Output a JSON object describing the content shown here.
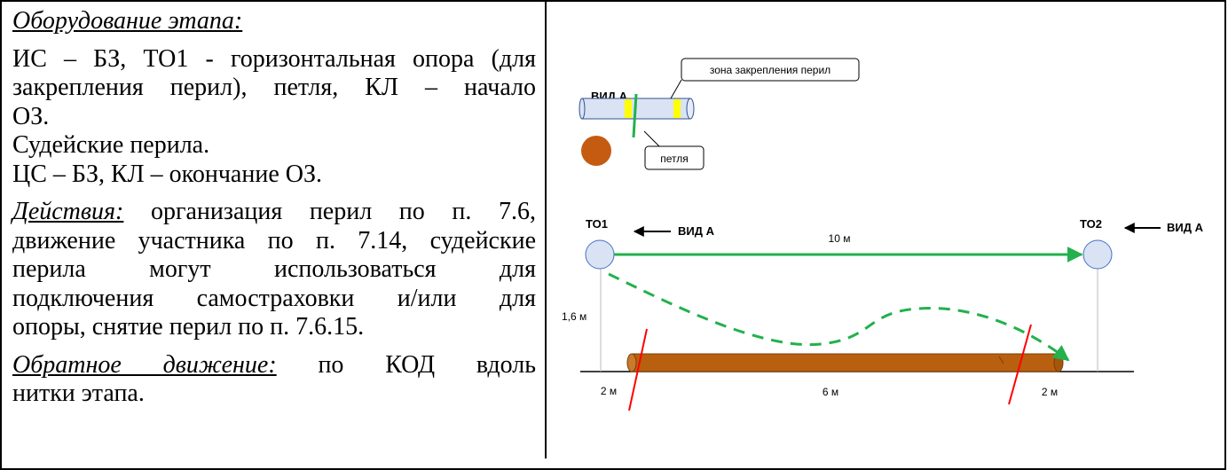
{
  "text": {
    "equipment_header": "Оборудование этапа:",
    "equipment_lines": [
      "ИС – БЗ, ТО1 - горизонтальная опора (для",
      "закрепления перил), петля, КЛ – начало",
      "ОЗ.",
      "Судейские перила.",
      "ЦС – БЗ, КЛ – окончание ОЗ."
    ],
    "actions_header": "Действия:",
    "actions_lines": [
      " организация перил по п. 7.6,",
      "движение участника по п. 7.14, судейские",
      "перила могут использоваться для",
      "подключения самостраховки и/или для",
      "опоры, снятие перил по п. 7.6.15."
    ],
    "return_header": "Обратное движение:",
    "return_lines": [
      " по КОД вдоль",
      "нитки этапа."
    ]
  },
  "diagram": {
    "view_a_title": "ВИД А",
    "callout_rail_zone": "зона закрепления перил",
    "callout_loop": "петля",
    "to1_label": "ТО1",
    "to2_label": "ТО2",
    "view_a_arrow_label_1": "ВИД А",
    "view_a_arrow_label_2": "ВИД А",
    "span_label": "10 м",
    "height_label": "1,6 м",
    "left_gap_label": "2 м",
    "log_length_label": "6 м",
    "right_gap_label": "2 м",
    "colors": {
      "green": "#22b14c",
      "yellow": "#ffff00",
      "log": "#b8600f",
      "cylinder": "#dae3f3",
      "red": "#ff0000"
    }
  }
}
